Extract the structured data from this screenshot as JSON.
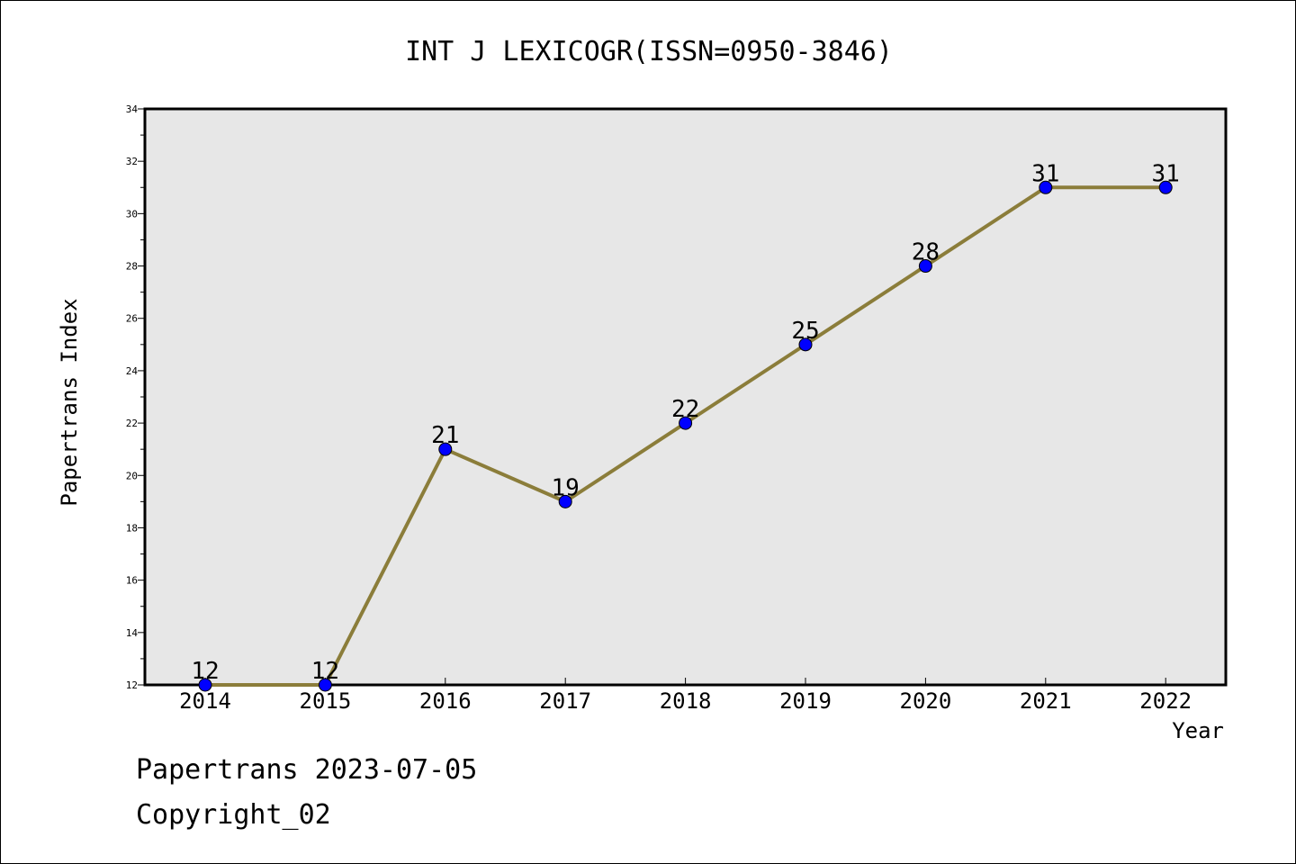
{
  "chart_data": {
    "type": "line",
    "title": "INT J LEXICOGR(ISSN=0950-3846)",
    "xlabel": "Year",
    "ylabel": "Papertrans Index",
    "categories": [
      "2014",
      "2015",
      "2016",
      "2017",
      "2018",
      "2019",
      "2020",
      "2021",
      "2022"
    ],
    "series": [
      {
        "values": [
          12,
          12,
          21,
          19,
          22,
          25,
          28,
          31,
          31
        ],
        "data_labels": [
          "12",
          "12",
          "21",
          "19",
          "22",
          "25",
          "28",
          "31",
          "31"
        ]
      }
    ],
    "ylim": [
      12,
      34
    ],
    "yticks": [
      "12",
      "14",
      "16",
      "18",
      "20",
      "22",
      "24",
      "26",
      "28",
      "30",
      "32",
      "34"
    ],
    "grid": false,
    "colors": {
      "line": "#8b7d3a",
      "marker": "#0000ff",
      "plot_background": "#e7e7e7"
    }
  },
  "footer": {
    "line1": "Papertrans 2023-07-05",
    "line2": "Copyright_02"
  }
}
